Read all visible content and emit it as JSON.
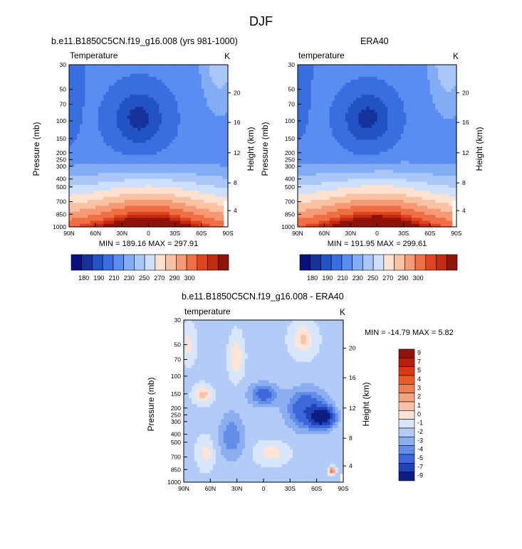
{
  "figure": {
    "title": "DJF"
  },
  "chart_data": [
    {
      "type": "heatmap",
      "panel": "model",
      "title": "b.e11.B1850C5CN.f19_g16.008 (yrs 981-1000)",
      "left_label": "Temperature",
      "units": "K",
      "ylabel": "Pressure (mb)",
      "y2label": "Height (km)",
      "x_ticks": [
        "90N",
        "60N",
        "30N",
        "0",
        "30S",
        "60S",
        "90S"
      ],
      "y_ticks": [
        "30",
        "50",
        "70",
        "100",
        "150",
        "200",
        "250",
        "300",
        "400",
        "500",
        "700",
        "850",
        "1000"
      ],
      "y2_ticks": [
        "20",
        "16",
        "12",
        "8",
        "4"
      ],
      "stats": {
        "text": "MIN = 189.16  MAX = 297.91",
        "min": 189.16,
        "max": 297.91
      },
      "colorbar": {
        "orientation": "horizontal",
        "labels": [
          "180",
          "190",
          "210",
          "230",
          "250",
          "270",
          "290",
          "300"
        ]
      }
    },
    {
      "type": "heatmap",
      "panel": "obs",
      "title": "ERA40",
      "left_label": "temperature",
      "units": "K",
      "ylabel": "Pressure (mb)",
      "y2label": "Height (km)",
      "x_ticks": [
        "90N",
        "60N",
        "30N",
        "0",
        "30S",
        "60S",
        "90S"
      ],
      "y_ticks": [
        "30",
        "50",
        "70",
        "100",
        "150",
        "200",
        "250",
        "300",
        "400",
        "500",
        "700",
        "850",
        "1000"
      ],
      "y2_ticks": [
        "20",
        "16",
        "12",
        "8",
        "4"
      ],
      "stats": {
        "text": "MIN = 191.95  MAX = 299.61",
        "min": 191.95,
        "max": 299.61
      },
      "colorbar": {
        "orientation": "horizontal",
        "labels": [
          "180",
          "190",
          "210",
          "230",
          "250",
          "270",
          "290",
          "300"
        ]
      }
    },
    {
      "type": "heatmap",
      "panel": "difference",
      "title": "b.e11.B1850C5CN.f19_g16.008 - ERA40",
      "left_label": "temperature",
      "units": "K",
      "ylabel": "Pressure (mb)",
      "y2label": "Height (km)",
      "x_ticks": [
        "90N",
        "60N",
        "30N",
        "0",
        "30S",
        "60S",
        "90S"
      ],
      "y_ticks": [
        "30",
        "50",
        "70",
        "100",
        "150",
        "200",
        "250",
        "300",
        "400",
        "500",
        "700",
        "850",
        "1000"
      ],
      "y2_ticks": [
        "20",
        "16",
        "12",
        "8",
        "4"
      ],
      "stats": {
        "text": "MIN = -14.79  MAX =  5.82",
        "min": -14.79,
        "max": 5.82
      },
      "colorbar": {
        "orientation": "vertical",
        "labels": [
          "9",
          "7",
          "5",
          "4",
          "3",
          "2",
          "1",
          "0",
          "-1",
          "-2",
          "-3",
          "-4",
          "-5",
          "-7",
          "-9"
        ]
      }
    }
  ],
  "palettes": {
    "absolute": [
      "#08107e",
      "#14329a",
      "#2352c4",
      "#3a6ee0",
      "#5a8df0",
      "#82acf4",
      "#a8c6f7",
      "#cde0fb",
      "#fde2d2",
      "#f9c2a3",
      "#f59a74",
      "#ef6f45",
      "#df4320",
      "#c42a10",
      "#8e1309"
    ],
    "difference": [
      "#8e1309",
      "#b3200c",
      "#d93a14",
      "#ef5a2a",
      "#f47e52",
      "#f7a27f",
      "#f9c2a7",
      "#fde4d6",
      "#d8e6fb",
      "#b3cbf6",
      "#8aaef0",
      "#628ee8",
      "#3d68dc",
      "#2044b8",
      "#0c1d82"
    ]
  }
}
